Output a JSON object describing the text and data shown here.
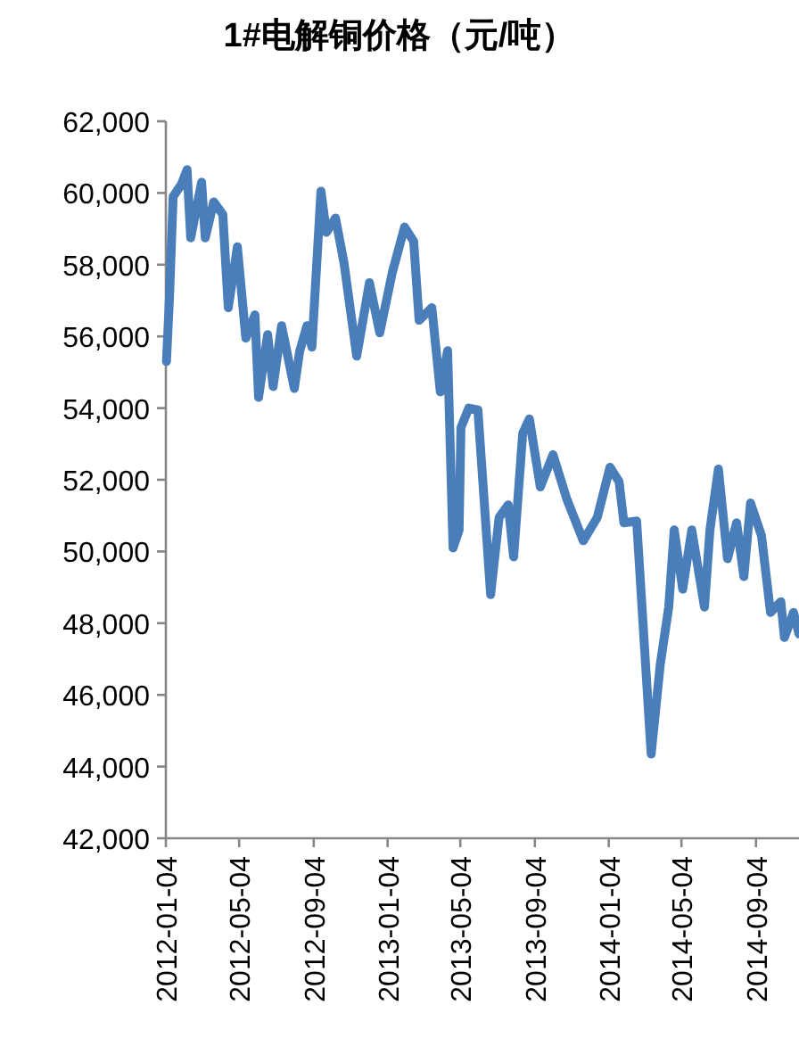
{
  "chart_data": {
    "type": "line",
    "title": "1#电解铜价格（元/吨）",
    "x": [
      "2012-01-05",
      "2012-01-10",
      "2012-01-16",
      "2012-01-30",
      "2012-02-08",
      "2012-02-14",
      "2012-03-03",
      "2012-03-09",
      "2012-03-23",
      "2012-04-07",
      "2012-04-16",
      "2012-05-01",
      "2012-05-15",
      "2012-05-30",
      "2012-06-05",
      "2012-06-20",
      "2012-06-29",
      "2012-07-13",
      "2012-08-03",
      "2012-08-12",
      "2012-08-24",
      "2012-09-01",
      "2012-09-16",
      "2012-09-25",
      "2012-10-10",
      "2012-10-24",
      "2012-11-14",
      "2012-12-05",
      "2012-12-22",
      "2013-01-12",
      "2013-02-01",
      "2013-02-16",
      "2013-02-25",
      "2013-03-18",
      "2013-04-01",
      "2013-04-13",
      "2013-04-22",
      "2013-05-02",
      "2013-05-05",
      "2013-05-18",
      "2013-06-02",
      "2013-06-23",
      "2013-07-07",
      "2013-07-22",
      "2013-07-31",
      "2013-08-15",
      "2013-08-26",
      "2013-09-13",
      "2013-10-04",
      "2013-10-27",
      "2013-11-23",
      "2013-12-16",
      "2014-01-06",
      "2014-01-21",
      "2014-01-29",
      "2014-02-19",
      "2014-03-15",
      "2014-03-30",
      "2014-04-13",
      "2014-04-22",
      "2014-05-06",
      "2014-05-21",
      "2014-06-11",
      "2014-06-20",
      "2014-07-04",
      "2014-07-19",
      "2014-08-03",
      "2014-08-15",
      "2014-08-26",
      "2014-09-13",
      "2014-09-28",
      "2014-10-15",
      "2014-10-21",
      "2014-11-05",
      "2014-11-14"
    ],
    "series": [
      {
        "color": "#4a7ebb",
        "values": [
          55300,
          57100,
          59900,
          60250,
          60650,
          58750,
          60300,
          58750,
          59750,
          59400,
          56800,
          58500,
          55950,
          56600,
          54300,
          56050,
          54600,
          56300,
          54550,
          55600,
          56300,
          55700,
          60050,
          58900,
          59300,
          58050,
          55450,
          57500,
          56100,
          57800,
          59050,
          58650,
          56450,
          56800,
          54450,
          55600,
          50100,
          50600,
          53450,
          54000,
          53950,
          48800,
          50950,
          51300,
          49850,
          53300,
          53700,
          51800,
          52700,
          51450,
          50300,
          50950,
          52350,
          51950,
          50800,
          50850,
          44350,
          46850,
          48450,
          50600,
          48950,
          50600,
          48450,
          50600,
          52300,
          49800,
          50800,
          49300,
          51350,
          50450,
          48300,
          48600,
          47600,
          48300,
          47700
        ]
      }
    ],
    "xlim": [
      "2012-01-04",
      "2014-11-14"
    ],
    "xticks": [
      "2012-01-04",
      "2012-05-04",
      "2012-09-04",
      "2013-01-04",
      "2013-05-04",
      "2013-09-04",
      "2014-01-04",
      "2014-05-04",
      "2014-09-04"
    ],
    "ylim": [
      42000,
      62000
    ],
    "yticks": [
      {
        "value": 42000,
        "label": "42,000"
      },
      {
        "value": 44000,
        "label": "44,000"
      },
      {
        "value": 46000,
        "label": "46,000"
      },
      {
        "value": 48000,
        "label": "48,000"
      },
      {
        "value": 50000,
        "label": "50,000"
      },
      {
        "value": 52000,
        "label": "52,000"
      },
      {
        "value": 54000,
        "label": "54,000"
      },
      {
        "value": 56000,
        "label": "56,000"
      },
      {
        "value": 58000,
        "label": "58,000"
      },
      {
        "value": 60000,
        "label": "60,000"
      },
      {
        "value": 62000,
        "label": "62,000"
      }
    ],
    "grid": false,
    "marker": "none",
    "line_style": "solid"
  }
}
